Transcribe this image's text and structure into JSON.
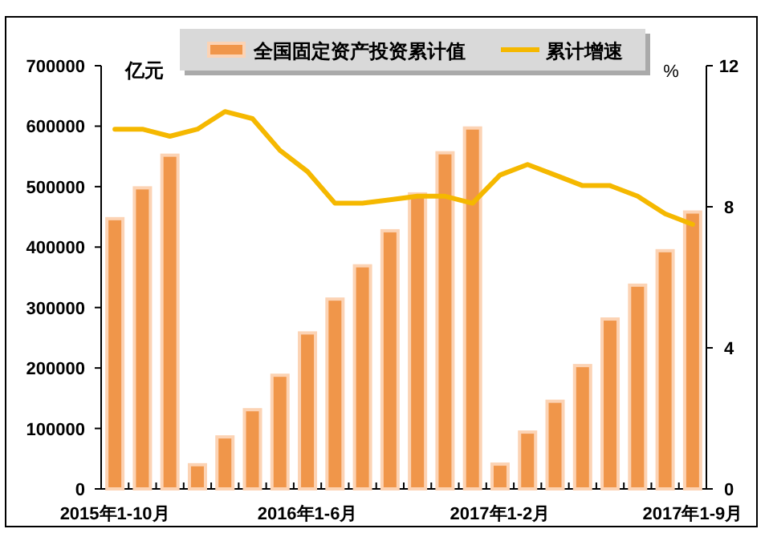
{
  "chart_data": {
    "type": "bar",
    "categories": [
      "2015年1-10月",
      null,
      null,
      null,
      null,
      null,
      null,
      "2016年1-6月",
      null,
      null,
      null,
      null,
      null,
      null,
      "2017年1-2月",
      null,
      null,
      null,
      null,
      null,
      null,
      "2017年1-9月"
    ],
    "series": [
      {
        "name": "全国固定资产投资累计值",
        "color": "#f0964a",
        "values": [
          447000,
          498000,
          552000,
          40000,
          86000,
          131000,
          188000,
          258000,
          314000,
          369000,
          427000,
          488000,
          556000,
          597000,
          41000,
          94000,
          145000,
          204000,
          281000,
          337000,
          394000,
          458000
        ]
      },
      {
        "name": "累计增速",
        "type": "line",
        "axis": "y2",
        "color": "#f5b800",
        "values": [
          10.2,
          10.2,
          10.0,
          10.2,
          10.7,
          10.5,
          9.6,
          9.0,
          8.1,
          8.1,
          8.2,
          8.3,
          8.3,
          8.1,
          8.9,
          9.2,
          8.9,
          8.6,
          8.6,
          8.3,
          7.8,
          7.5
        ]
      }
    ],
    "ylabel": "亿元",
    "y2label": "%",
    "ylim": [
      0,
      700000
    ],
    "yticks": [
      0,
      100000,
      200000,
      300000,
      400000,
      500000,
      600000,
      700000
    ],
    "y2lim": [
      0,
      12
    ],
    "y2ticks": [
      0,
      4,
      8,
      12
    ],
    "legend": "top",
    "grid": false
  }
}
